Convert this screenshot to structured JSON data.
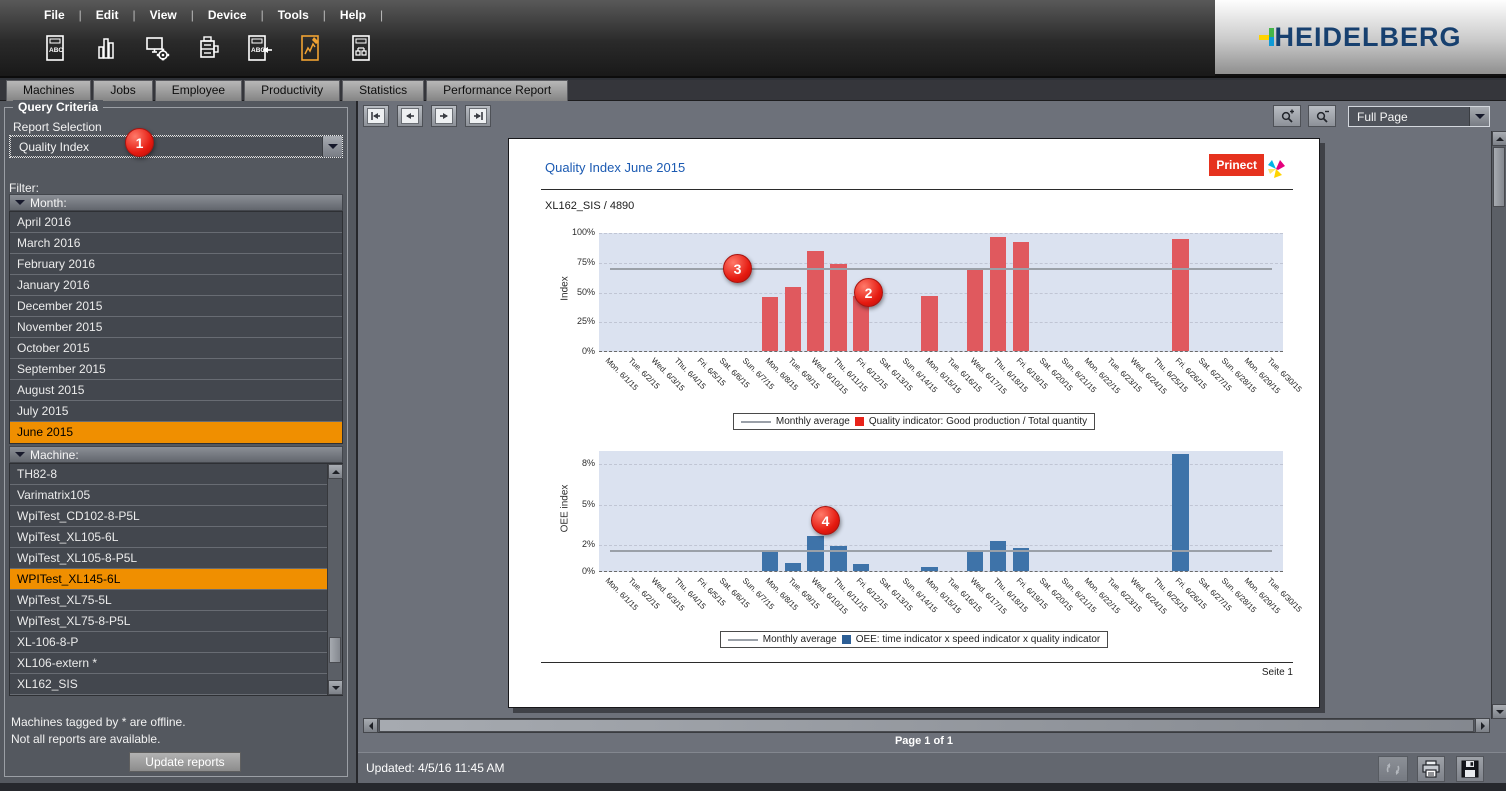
{
  "menu": {
    "items": [
      "File",
      "Edit",
      "View",
      "Device",
      "Tools",
      "Help"
    ]
  },
  "toolbar_icons": [
    "machine-report-icon",
    "bar-chart-report-icon",
    "system-settings-icon",
    "press-device-icon",
    "report-import-icon",
    "performance-report-icon",
    "device-network-report-icon"
  ],
  "brand": {
    "logo_text": "HEIDELBERG"
  },
  "tabs": [
    "Machines",
    "Jobs",
    "Employee",
    "Productivity",
    "Statistics",
    "Performance Report"
  ],
  "sidebar": {
    "group_title": "Query Criteria",
    "report_selection_label": "Report Selection",
    "report_selection_value": "Quality Index",
    "filter_label": "Filter:",
    "month_header": "Month:",
    "months": [
      "April 2016",
      "March 2016",
      "February 2016",
      "January 2016",
      "December 2015",
      "November 2015",
      "October 2015",
      "September 2015",
      "August 2015",
      "July 2015",
      "June 2015"
    ],
    "selected_month": "June 2015",
    "machine_header": "Machine:",
    "machines": [
      "TH82-8",
      "Varimatrix105",
      "WpiTest_CD102-8-P5L",
      "WpiTest_XL105-6L",
      "WpiTest_XL105-8-P5L",
      "WPITest_XL145-6L",
      "WpiTest_XL75-5L",
      "WpiTest_XL75-8-P5L",
      "XL-106-8-P",
      "XL106-extern *",
      "XL162_SIS"
    ],
    "selected_machine": "WPITest_XL145-6L",
    "note_line1": "Machines tagged by * are offline.",
    "note_line2": "Not all reports are available.",
    "update_button": "Update reports"
  },
  "viewer": {
    "zoom_value": "Full Page",
    "page_indicator": "Page 1 of 1",
    "status_updated": "Updated: 4/5/16 11:45 AM"
  },
  "report": {
    "title": "Quality Index June 2015",
    "brand_badge": "Prinect",
    "machine_line": "XL162_SIS / 4890",
    "page_footer": "Seite 1"
  },
  "callouts": {
    "b1": "1",
    "b2": "2",
    "b3": "3",
    "b4": "4"
  },
  "chart_data": [
    {
      "type": "bar",
      "ylabel": "Index",
      "ylim": [
        0,
        100
      ],
      "yticks": [
        {
          "label": "0%",
          "value": 0
        },
        {
          "label": "25%",
          "value": 25
        },
        {
          "label": "50%",
          "value": 50
        },
        {
          "label": "75%",
          "value": 75
        },
        {
          "label": "100%",
          "value": 100
        }
      ],
      "categories": [
        "Mon. 6/1/15",
        "Tue. 6/2/15",
        "Wed. 6/3/15",
        "Thu. 6/4/15",
        "Fri. 6/5/15",
        "Sat. 6/6/15",
        "Sun. 6/7/15",
        "Mon. 6/8/15",
        "Tue. 6/9/15",
        "Wed. 6/10/15",
        "Thu. 6/11/15",
        "Fri. 6/12/15",
        "Sat. 6/13/15",
        "Sun. 6/14/15",
        "Mon. 6/15/15",
        "Tue. 6/16/15",
        "Wed. 6/17/15",
        "Thu. 6/18/15",
        "Fri. 6/19/15",
        "Sat. 6/20/15",
        "Sun. 6/21/15",
        "Mon. 6/22/15",
        "Tue. 6/23/15",
        "Wed. 6/24/15",
        "Thu. 6/25/15",
        "Fri. 6/26/15",
        "Sat. 6/27/15",
        "Sun. 6/28/15",
        "Mon. 6/29/15",
        "Tue. 6/30/15"
      ],
      "values": [
        0,
        0,
        0,
        0,
        0,
        0,
        0,
        45,
        54,
        84,
        73,
        46,
        0,
        0,
        46,
        0,
        70,
        96,
        92,
        0,
        0,
        0,
        0,
        0,
        0,
        94,
        0,
        0,
        0,
        0
      ],
      "average": 70,
      "bar_color": "#e0595e",
      "line_color": "#9aa0a8",
      "legend_line": "Monthly average",
      "legend_bar": "Quality indicator: Good production / Total quantity",
      "grid": true,
      "legend_position": "bottom-center"
    },
    {
      "type": "bar",
      "ylabel": "OEE index",
      "ylim": [
        0,
        9
      ],
      "yticks": [
        {
          "label": "0%",
          "value": 0
        },
        {
          "label": "2%",
          "value": 2
        },
        {
          "label": "5%",
          "value": 5
        },
        {
          "label": "8%",
          "value": 8
        }
      ],
      "categories": [
        "Mon. 6/1/15",
        "Tue. 6/2/15",
        "Wed. 6/3/15",
        "Thu. 6/4/15",
        "Fri. 6/5/15",
        "Sat. 6/6/15",
        "Sun. 6/7/15",
        "Mon. 6/8/15",
        "Tue. 6/9/15",
        "Wed. 6/10/15",
        "Thu. 6/11/15",
        "Fri. 6/12/15",
        "Sat. 6/13/15",
        "Sun. 6/14/15",
        "Mon. 6/15/15",
        "Tue. 6/16/15",
        "Wed. 6/17/15",
        "Thu. 6/18/15",
        "Fri. 6/19/15",
        "Sat. 6/20/15",
        "Sun. 6/21/15",
        "Mon. 6/22/15",
        "Tue. 6/23/15",
        "Wed. 6/24/15",
        "Thu. 6/25/15",
        "Fri. 6/26/15",
        "Sat. 6/27/15",
        "Sun. 6/28/15",
        "Mon. 6/29/15",
        "Tue. 6/30/15"
      ],
      "values": [
        0,
        0,
        0,
        0,
        0,
        0,
        0,
        1.6,
        0.6,
        2.6,
        1.9,
        0.5,
        0,
        0,
        0.3,
        0,
        1.5,
        2.2,
        1.7,
        0,
        0,
        0,
        0,
        0,
        0,
        8.7,
        0,
        0,
        0,
        0
      ],
      "average": 1.6,
      "bar_color": "#3e73a9",
      "line_color": "#9aa0a8",
      "legend_line": "Monthly average",
      "legend_bar": "OEE: time indicator x speed indicator x quality indicator",
      "grid": true,
      "legend_position": "bottom-center"
    }
  ]
}
